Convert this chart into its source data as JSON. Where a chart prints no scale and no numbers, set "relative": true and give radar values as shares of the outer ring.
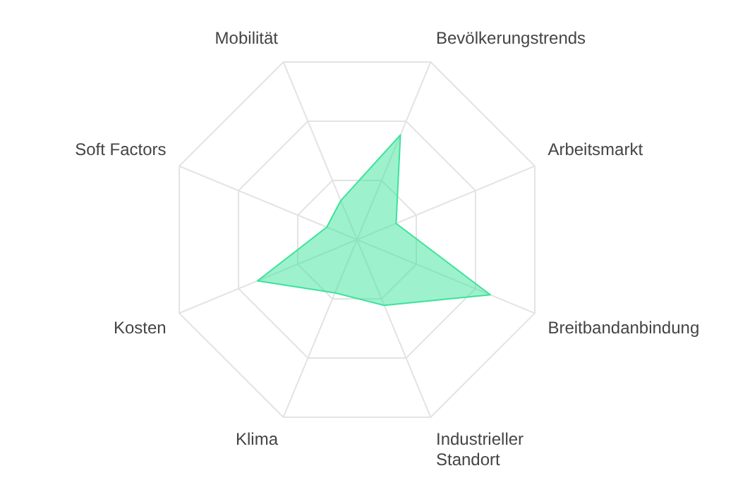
{
  "chart_data": {
    "type": "radar",
    "relative": true,
    "categories": [
      "Bevölkerungstrends",
      "Arbeitsmarkt",
      "Breitbandanbindung",
      "Industrieller Standort",
      "Klima",
      "Kosten",
      "Soft Factors",
      "Mobilität"
    ],
    "series": [
      {
        "color": "#3be39a",
        "values": [
          0.59,
          0.22,
          0.75,
          0.37,
          0.3,
          0.56,
          0.17,
          0.22
        ]
      }
    ],
    "grid": true,
    "legend": false
  }
}
